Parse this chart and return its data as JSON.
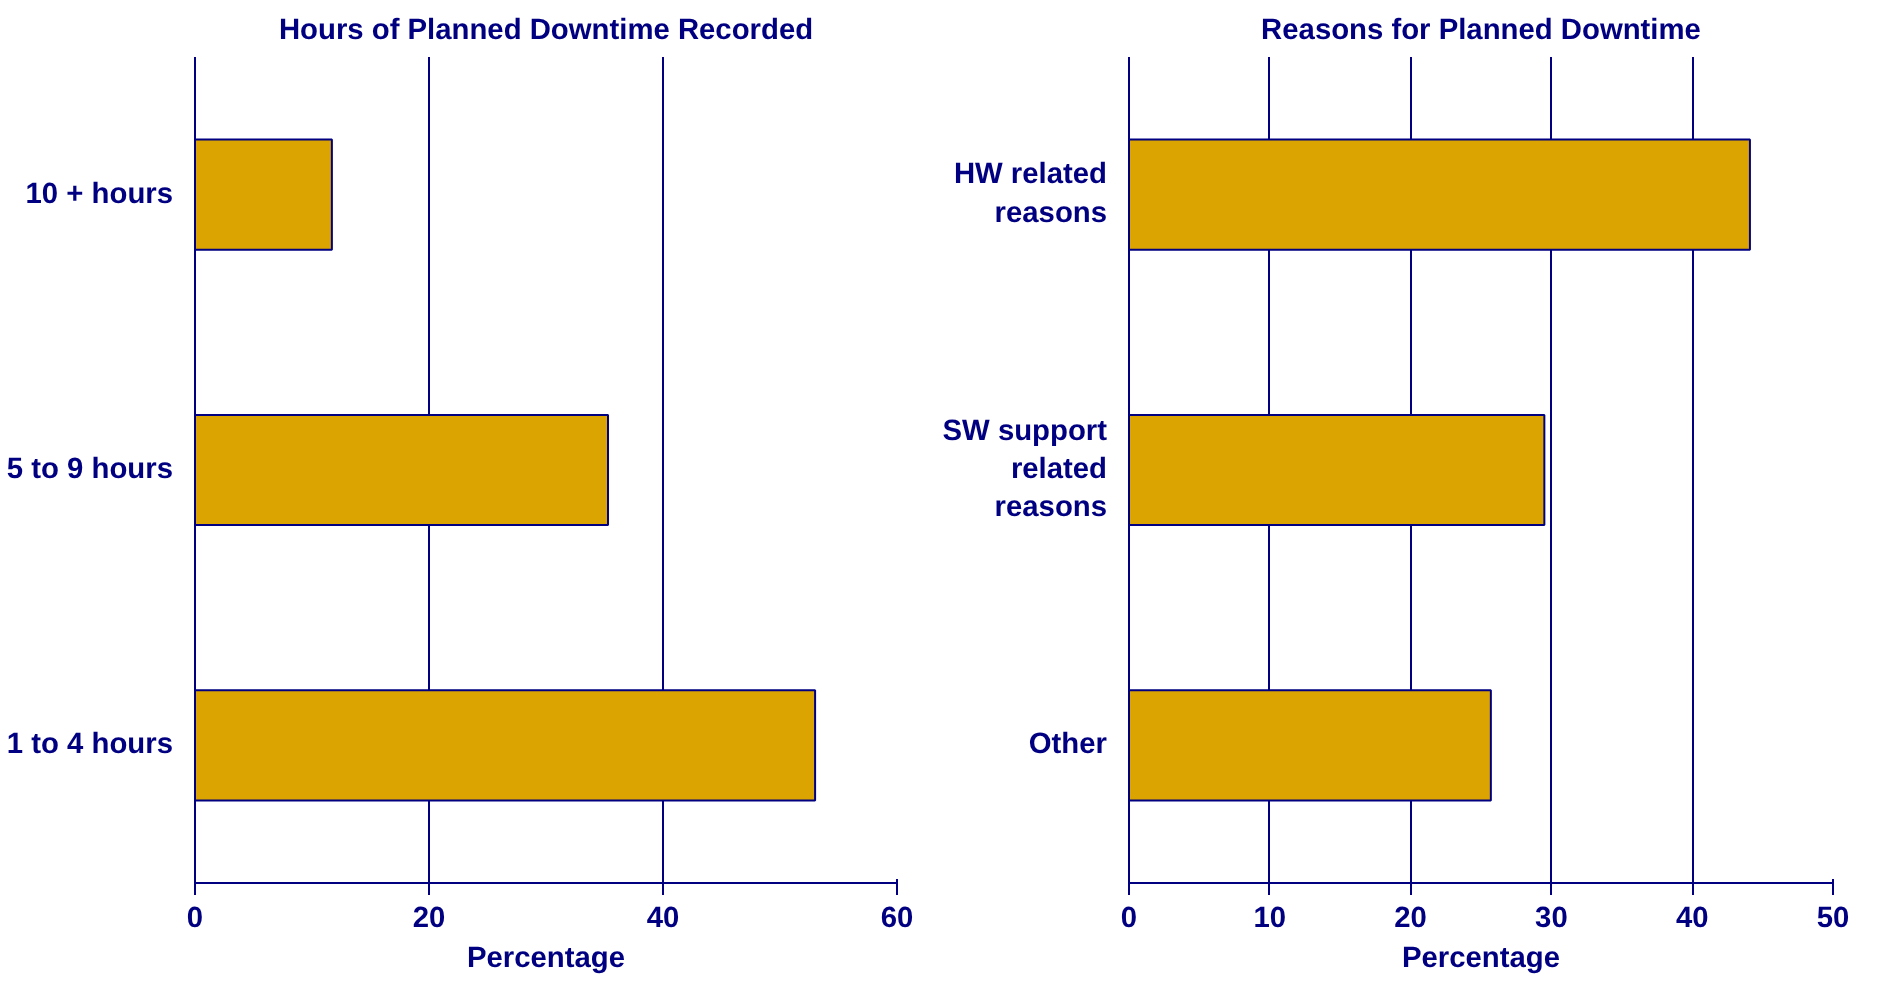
{
  "chart_data": [
    {
      "type": "bar",
      "orientation": "horizontal",
      "title": "Hours of Planned Downtime Recorded",
      "xlabel": "Percentage",
      "categories": [
        "10 + hours",
        "5 to 9 hours",
        "1 to 4 hours"
      ],
      "values": [
        11.7,
        35.3,
        53.0
      ],
      "color": "#dba400",
      "xlim": [
        0,
        60
      ],
      "xticks": [
        0,
        20,
        40,
        60
      ],
      "grid": "x"
    },
    {
      "type": "bar",
      "orientation": "horizontal",
      "title": "Reasons for Planned Downtime",
      "xlabel": "Percentage",
      "categories": [
        "HW related\nreasons",
        "SW support\nrelated\nreasons",
        "Other"
      ],
      "values": [
        44.1,
        29.5,
        25.7
      ],
      "color": "#dba400",
      "xlim": [
        0,
        50
      ],
      "xticks": [
        0,
        10,
        20,
        30,
        40,
        50
      ],
      "grid": "x"
    }
  ]
}
